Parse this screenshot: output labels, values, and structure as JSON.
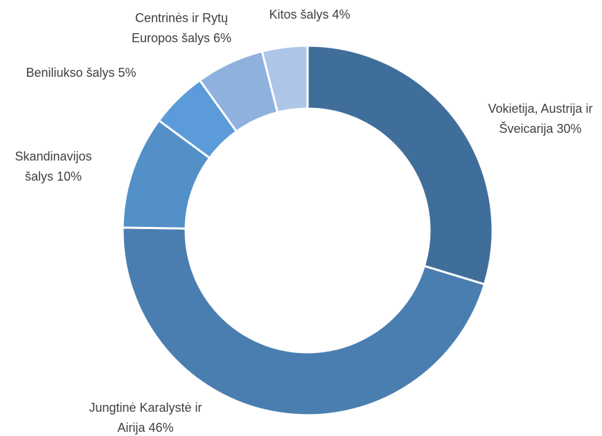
{
  "chart_data": {
    "type": "donut",
    "categories": [
      "Vokietija, Austrija ir Šveicarija",
      "Jungtinė Karalystė ir Airija",
      "Skandinavijos šalys",
      "Beniliukso šalys",
      "Centrinės ir Rytų Europos šalys",
      "Kitos šalys"
    ],
    "values": [
      30,
      46,
      10,
      5,
      6,
      4
    ],
    "value_labels": [
      "30%",
      "46%",
      "10%",
      "5%",
      "6%",
      "4%"
    ],
    "colors": [
      "#406e9a",
      "#4a7eb0",
      "#5390c8",
      "#5b9bd9",
      "#8fb1dd",
      "#adc6e8"
    ]
  }
}
